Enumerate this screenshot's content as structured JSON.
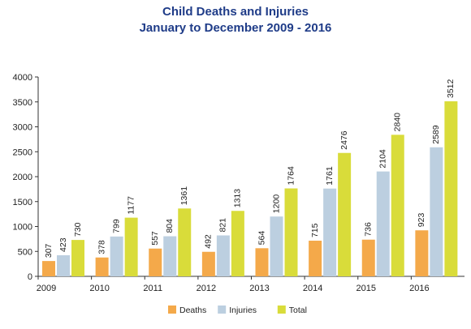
{
  "chart_data": {
    "type": "bar",
    "title": "Child Deaths and Injuries",
    "subtitle": "January to December 2009 - 2016",
    "xlabel": "",
    "ylabel": "",
    "categories": [
      "2009",
      "2010",
      "2011",
      "2012",
      "2013",
      "2014",
      "2015",
      "2016"
    ],
    "ylim": [
      0,
      4000
    ],
    "yticks": [
      0,
      500,
      1000,
      1500,
      2000,
      2500,
      3000,
      3500,
      4000
    ],
    "grid": false,
    "legend_position": "bottom",
    "series": [
      {
        "name": "Deaths",
        "color": "#f4a94a",
        "values": [
          307,
          378,
          557,
          492,
          564,
          715,
          736,
          923
        ]
      },
      {
        "name": "Injuries",
        "color": "#bccfe0",
        "values": [
          423,
          799,
          804,
          821,
          1200,
          1761,
          2104,
          2589
        ]
      },
      {
        "name": "Total",
        "color": "#d9dc3a",
        "values": [
          730,
          1177,
          1361,
          1313,
          1764,
          2476,
          2840,
          3512
        ]
      }
    ]
  }
}
